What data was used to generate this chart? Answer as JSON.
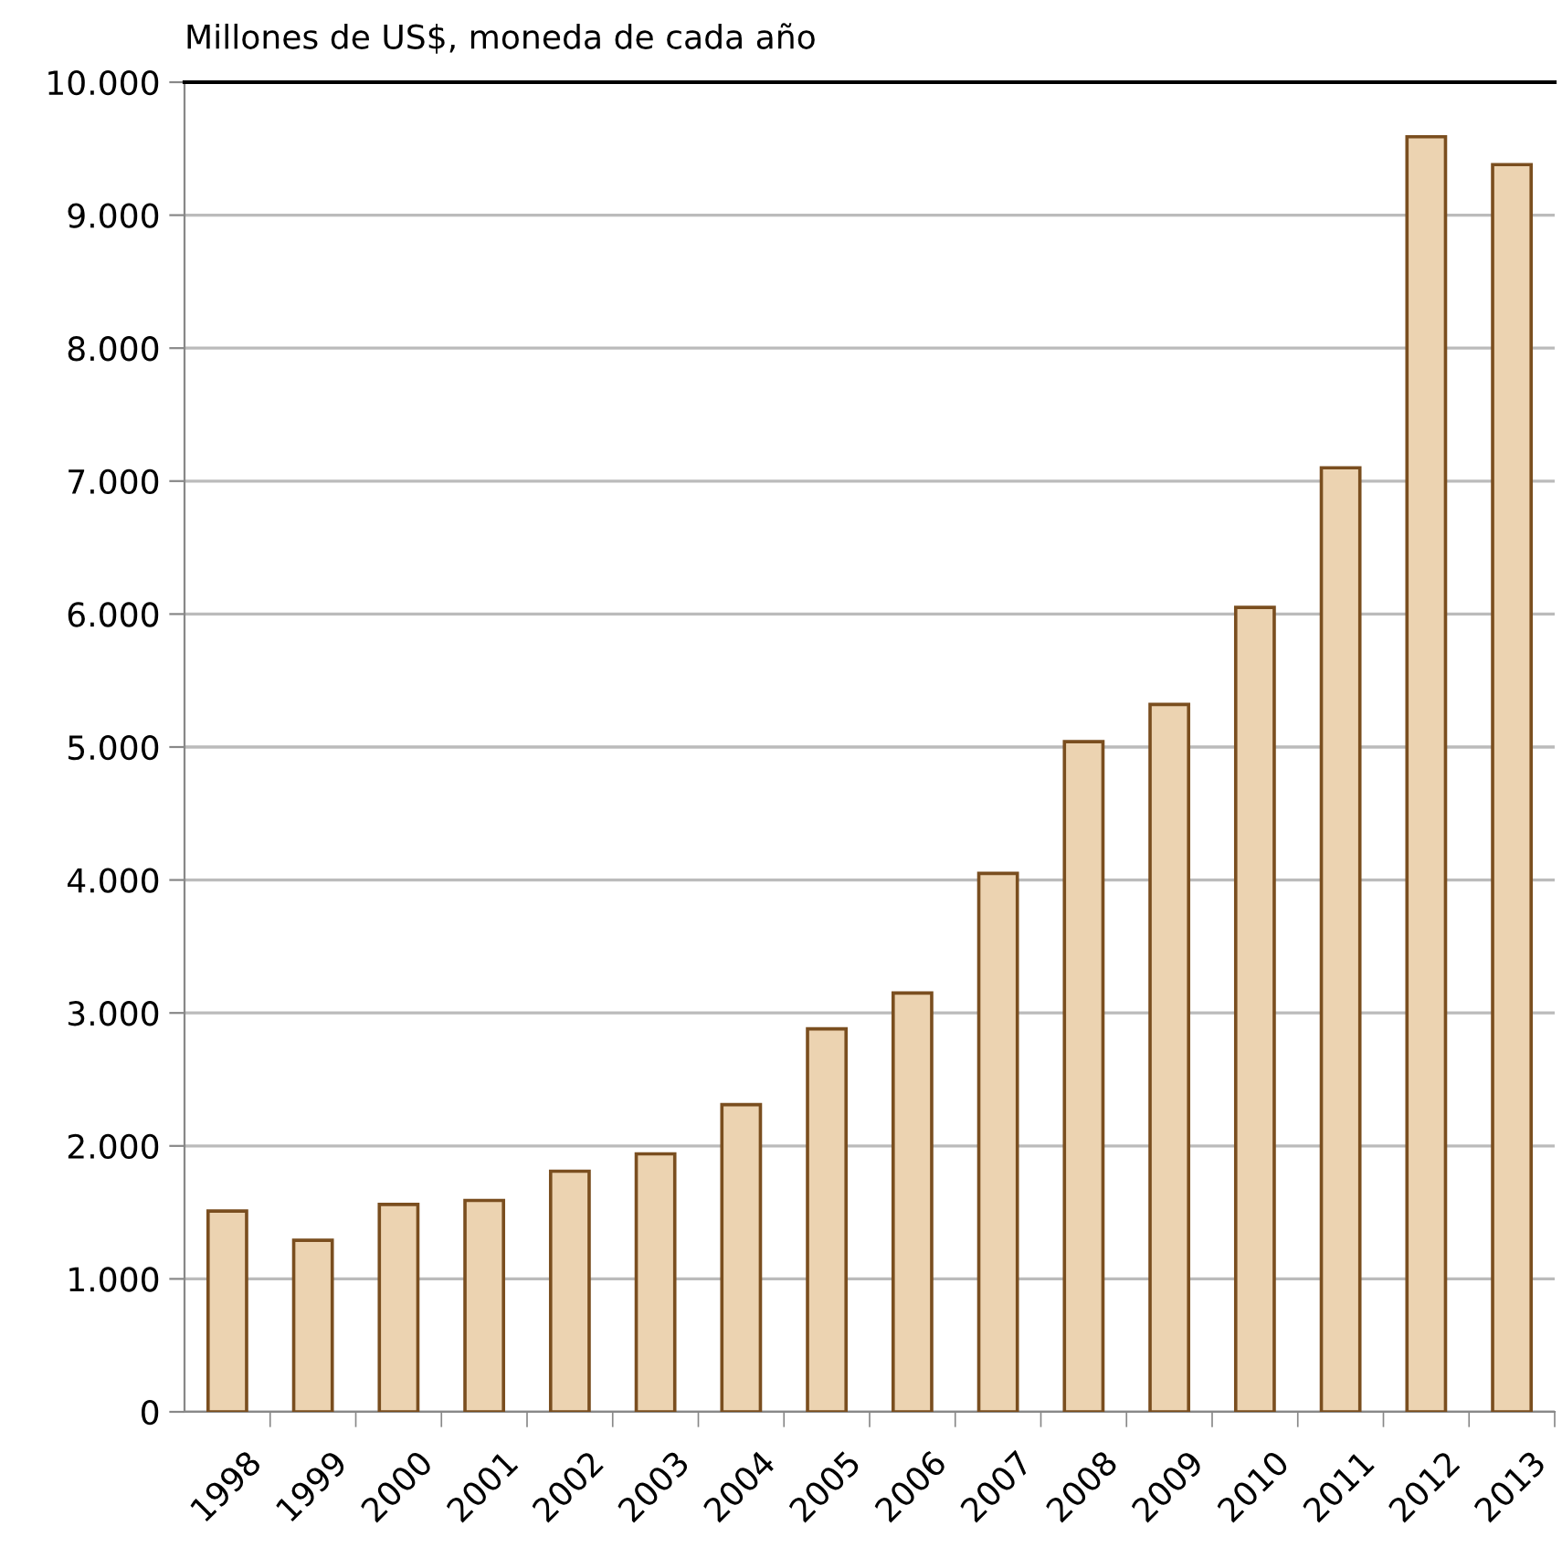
{
  "chart_data": {
    "type": "bar",
    "ylabel": "Millones de US$, moneda de cada año",
    "categories": [
      "1998",
      "1999",
      "2000",
      "2001",
      "2002",
      "2003",
      "2004",
      "2005",
      "2006",
      "2007",
      "2008",
      "2009",
      "2010",
      "2011",
      "2012",
      "2013"
    ],
    "values": [
      1510,
      1290,
      1560,
      1590,
      1810,
      1940,
      2310,
      2880,
      3150,
      4050,
      5040,
      5320,
      6050,
      7100,
      9590,
      9380
    ],
    "color": "#ecd3b1",
    "ylim": [
      0,
      10000
    ],
    "yticks": [
      {
        "value": 0,
        "label": "0"
      },
      {
        "value": 1000,
        "label": "1.000"
      },
      {
        "value": 2000,
        "label": "2.000"
      },
      {
        "value": 3000,
        "label": "3.000"
      },
      {
        "value": 4000,
        "label": "4.000"
      },
      {
        "value": 5000,
        "label": "5.000"
      },
      {
        "value": 6000,
        "label": "6.000"
      },
      {
        "value": 7000,
        "label": "7.000"
      },
      {
        "value": 8000,
        "label": "8.000"
      },
      {
        "value": 9000,
        "label": "9.000"
      },
      {
        "value": 10000,
        "label": "10.000"
      }
    ],
    "grid": "y"
  }
}
